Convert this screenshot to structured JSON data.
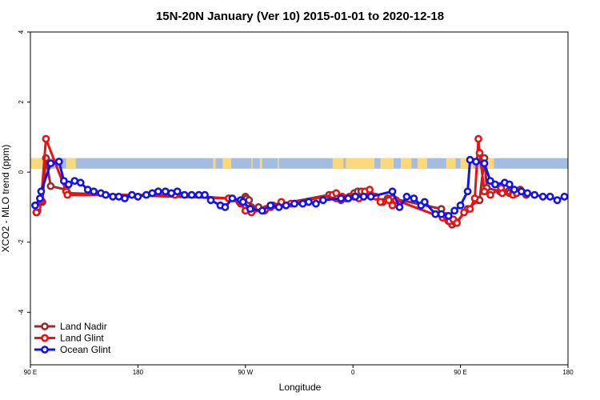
{
  "chart_data": {
    "type": "line",
    "title": "15N-20N January (Ver 10)   2015-01-01 to 2020-12-18",
    "xlabel": "Longitude",
    "ylabel": "XCO2 - MLO trend (ppm)",
    "xlim": [
      90,
      540
    ],
    "ylim": [
      -5.5,
      4.0
    ],
    "x_ticks": [
      {
        "value": 90,
        "label": "90 E"
      },
      {
        "value": 180,
        "label": "180"
      },
      {
        "value": 270,
        "label": "90 W"
      },
      {
        "value": 360,
        "label": "0"
      },
      {
        "value": 450,
        "label": "90 E"
      },
      {
        "value": 540,
        "label": "180"
      }
    ],
    "y_ticks": [
      {
        "value": 4,
        "label": "4"
      },
      {
        "value": 2,
        "label": "2"
      },
      {
        "value": 0,
        "label": "0"
      },
      {
        "value": -2,
        "label": "-2"
      },
      {
        "value": -4,
        "label": "-4"
      }
    ],
    "land_strip": {
      "y_range": [
        0.1,
        0.4
      ],
      "ocean_color": "#a3bce0",
      "land_color": "#fbd97a",
      "land_segments": [
        [
          90,
          101
        ],
        [
          120,
          128
        ],
        [
          243,
          245
        ],
        [
          251,
          258
        ],
        [
          275,
          276
        ],
        [
          282,
          284
        ],
        [
          297,
          298
        ],
        [
          343,
          352
        ],
        [
          354,
          378
        ],
        [
          383,
          394
        ],
        [
          400,
          409
        ],
        [
          414,
          422
        ],
        [
          438,
          446
        ],
        [
          450,
          461
        ],
        [
          470,
          478
        ]
      ]
    },
    "legend": {
      "position": "bottom-left"
    },
    "series": [
      {
        "name": "Land Nadir",
        "color": "#9c2a2a",
        "x": [
          95,
          96,
          100,
          103,
          107,
          120,
          121,
          256,
          266,
          270,
          271,
          273,
          275,
          281,
          286,
          293,
          340,
          343,
          346,
          350,
          354,
          358,
          361,
          364,
          367,
          385,
          389,
          393,
          434,
          437,
          440,
          443,
          446,
          456,
          465,
          466,
          470,
          472,
          483,
          484,
          490,
          491,
          494,
          500,
          501,
          505
        ],
        "y": [
          -1.15,
          -1.1,
          -0.85,
          0.4,
          -0.4,
          -0.5,
          -0.6,
          -0.75,
          -0.9,
          -0.7,
          -0.75,
          -0.8,
          -1.0,
          -1.0,
          -1.1,
          -0.95,
          -0.65,
          -0.7,
          -0.75,
          -0.8,
          -0.75,
          -0.7,
          -0.6,
          -0.55,
          -0.55,
          -0.85,
          -0.75,
          -0.75,
          -1.05,
          -1.3,
          -1.4,
          -1.5,
          -1.45,
          -1.05,
          -0.8,
          -0.8,
          0.4,
          -0.45,
          -0.55,
          -0.55,
          -0.55,
          -0.6,
          -0.6,
          -0.5,
          -0.55,
          -0.65
        ],
        "hidden_under_other_series": true
      },
      {
        "name": "Land Glint",
        "color": "#ee1111",
        "x": [
          95,
          96,
          99,
          103,
          120,
          121,
          211,
          256,
          265,
          270,
          275,
          287,
          291,
          300,
          308,
          343,
          346,
          351,
          357,
          361,
          365,
          370,
          374,
          379,
          383,
          390,
          393,
          396,
          435,
          438,
          441,
          444,
          447,
          453,
          458,
          462,
          465,
          466,
          470,
          475,
          484,
          485,
          494,
          497
        ],
        "y": [
          -1.15,
          -1.0,
          -0.8,
          0.95,
          -0.55,
          -0.65,
          -0.65,
          -0.75,
          -0.85,
          -1.1,
          -1.15,
          -1.05,
          -1.0,
          -0.85,
          -0.9,
          -0.65,
          -0.6,
          -0.7,
          -0.7,
          -0.7,
          -0.75,
          -0.55,
          -0.5,
          -0.7,
          -0.85,
          -0.8,
          -0.95,
          -0.8,
          -1.3,
          -1.25,
          -1.4,
          -1.35,
          -1.45,
          -1.15,
          -1.05,
          -0.75,
          0.95,
          0.55,
          -0.55,
          -0.65,
          -0.45,
          -0.6,
          -0.65,
          -0.6
        ],
        "hidden_under_other_series": true
      },
      {
        "name": "Ocean Glint",
        "color": "#1212f0",
        "x": [
          94,
          98,
          99,
          107,
          114,
          118,
          122,
          127,
          132,
          138,
          143,
          149,
          153,
          159,
          164,
          169,
          175,
          180,
          187,
          192,
          197,
          203,
          208,
          213,
          219,
          225,
          231,
          236,
          241,
          249,
          253,
          259,
          266,
          268,
          274,
          284,
          291,
          298,
          304,
          311,
          318,
          323,
          329,
          335,
          350,
          356,
          362,
          369,
          375,
          393,
          399,
          405,
          411,
          417,
          420,
          429,
          434,
          440,
          445,
          450,
          456,
          458,
          463,
          470,
          475,
          479,
          487,
          491,
          495,
          501,
          506,
          512,
          519,
          525,
          531,
          537
        ],
        "y": [
          -0.95,
          -0.75,
          -0.55,
          0.25,
          0.3,
          -0.25,
          -0.35,
          -0.25,
          -0.3,
          -0.5,
          -0.55,
          -0.6,
          -0.65,
          -0.7,
          -0.7,
          -0.75,
          -0.65,
          -0.7,
          -0.65,
          -0.6,
          -0.55,
          -0.55,
          -0.6,
          -0.55,
          -0.65,
          -0.65,
          -0.65,
          -0.65,
          -0.8,
          -0.95,
          -1.0,
          -0.75,
          -0.8,
          -0.85,
          -1.05,
          -1.1,
          -0.95,
          -1.0,
          -0.95,
          -0.9,
          -0.9,
          -0.85,
          -0.9,
          -0.8,
          -0.75,
          -0.75,
          -0.7,
          -0.7,
          -0.7,
          -0.55,
          -1.0,
          -0.7,
          -0.75,
          -0.95,
          -0.85,
          -1.2,
          -1.2,
          -1.25,
          -1.1,
          -0.95,
          -0.55,
          0.35,
          0.3,
          0.25,
          -0.25,
          -0.35,
          -0.3,
          -0.35,
          -0.5,
          -0.55,
          -0.6,
          -0.65,
          -0.7,
          -0.7,
          -0.8,
          -0.7
        ]
      }
    ]
  }
}
